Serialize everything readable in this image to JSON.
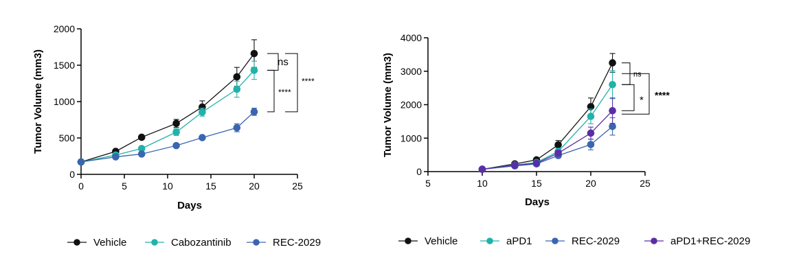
{
  "chart_data": [
    {
      "type": "line",
      "xlabel": "Days",
      "ylabel": "Tumor Volume (mm3)",
      "xlim": [
        0,
        25
      ],
      "ylim": [
        0,
        2000
      ],
      "xticks": [
        0,
        5,
        10,
        15,
        20,
        25
      ],
      "yticks": [
        0,
        500,
        1000,
        1500,
        2000
      ],
      "grid": false,
      "legend_position": "bottom",
      "series": [
        {
          "name": "Vehicle",
          "color": "#111111",
          "x": [
            0,
            4,
            7,
            11,
            14,
            18,
            20
          ],
          "y": [
            170,
            315,
            510,
            700,
            925,
            1340,
            1660
          ],
          "err": [
            0,
            20,
            25,
            55,
            85,
            130,
            190
          ]
        },
        {
          "name": "Cabozantinib",
          "color": "#21b2aa",
          "x": [
            0,
            4,
            7,
            11,
            14,
            18,
            20
          ],
          "y": [
            170,
            265,
            355,
            580,
            855,
            1170,
            1430
          ],
          "err": [
            0,
            20,
            25,
            45,
            55,
            110,
            125
          ]
        },
        {
          "name": "REC-2029",
          "color": "#3a66b0",
          "x": [
            0,
            4,
            7,
            11,
            14,
            18,
            20
          ],
          "y": [
            170,
            240,
            280,
            395,
            505,
            640,
            860
          ],
          "err": [
            0,
            15,
            15,
            20,
            20,
            55,
            50
          ]
        }
      ],
      "significance": [
        {
          "label": "ns",
          "between": [
            "Vehicle",
            "Cabozantinib"
          ]
        },
        {
          "label": "****",
          "between": [
            "Cabozantinib",
            "REC-2029"
          ]
        },
        {
          "label": "****",
          "between": [
            "Vehicle",
            "REC-2029"
          ]
        }
      ]
    },
    {
      "type": "line",
      "xlabel": "Days",
      "ylabel": "Tumor Volume (mm3)",
      "xlim": [
        5,
        25
      ],
      "ylim": [
        0,
        4000
      ],
      "xticks": [
        5,
        10,
        15,
        20,
        25
      ],
      "yticks": [
        0,
        1000,
        2000,
        3000,
        4000
      ],
      "grid": false,
      "legend_position": "bottom",
      "series": [
        {
          "name": "Vehicle",
          "color": "#111111",
          "x": [
            10,
            13,
            15,
            17,
            20,
            22
          ],
          "y": [
            70,
            230,
            350,
            800,
            1940,
            3250
          ],
          "err": [
            20,
            40,
            50,
            130,
            260,
            280
          ]
        },
        {
          "name": "aPD1",
          "color": "#21b2aa",
          "x": [
            10,
            13,
            15,
            17,
            20,
            22
          ],
          "y": [
            70,
            200,
            270,
            600,
            1650,
            2600
          ],
          "err": [
            20,
            35,
            40,
            100,
            220,
            420
          ]
        },
        {
          "name": "REC-2029",
          "color": "#3a66b0",
          "x": [
            10,
            13,
            15,
            17,
            20,
            22
          ],
          "y": [
            70,
            170,
            230,
            480,
            810,
            1350
          ],
          "err": [
            20,
            30,
            35,
            70,
            160,
            260
          ]
        },
        {
          "name": "aPD1+REC-2029",
          "color": "#5a2ea6",
          "x": [
            10,
            13,
            15,
            17,
            20,
            22
          ],
          "y": [
            70,
            190,
            250,
            550,
            1150,
            1820
          ],
          "err": [
            20,
            30,
            35,
            80,
            180,
            380
          ]
        }
      ],
      "significance": [
        {
          "label": "ns",
          "between": [
            "Vehicle",
            "aPD1"
          ]
        },
        {
          "label": "*",
          "between": [
            "aPD1",
            "REC-2029"
          ]
        },
        {
          "label": "****",
          "between": [
            "Vehicle",
            "REC-2029"
          ]
        }
      ]
    }
  ]
}
